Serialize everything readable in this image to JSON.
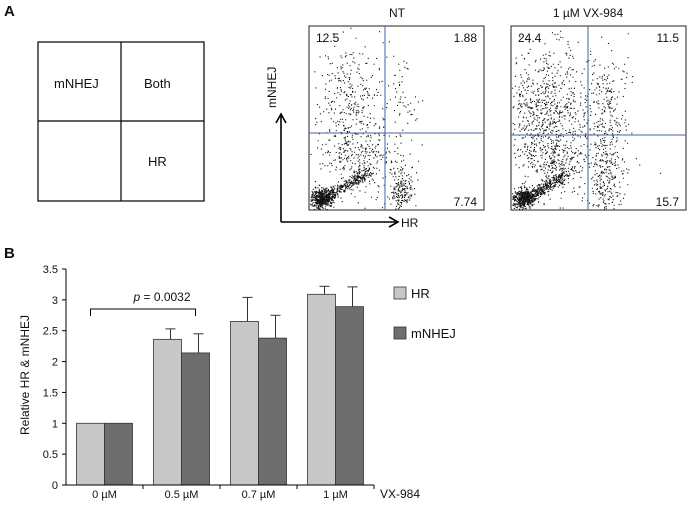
{
  "panels": {
    "a": "A",
    "b": "B"
  },
  "quadrant_key": {
    "top_left": "mNHEJ",
    "top_right": "Both",
    "bottom_left": "",
    "bottom_right": "HR"
  },
  "flow_axes": {
    "y": "mNHEJ",
    "x": "HR"
  },
  "flow_plots": [
    {
      "title": "NT",
      "top_left": "12.5",
      "top_right": "1.88",
      "bottom_right": "7.74"
    },
    {
      "title": "1 µM VX-984",
      "top_left": "24.4",
      "top_right": "11.5",
      "bottom_right": "15.7"
    }
  ],
  "chart_data": {
    "type": "bar",
    "ylabel": "Relative HR & mNHEJ",
    "xlabel": "VX-984",
    "ylim": [
      0,
      3.5
    ],
    "yticks": [
      "0",
      "0.5",
      "1",
      "1.5",
      "2",
      "2.5",
      "3",
      "3.5"
    ],
    "categories": [
      "0 µM",
      "0.5 µM",
      "0.7 µM",
      "1 µM"
    ],
    "series": [
      {
        "name": "HR",
        "color": "#c8c8c8",
        "values": [
          1.0,
          2.36,
          2.65,
          3.09
        ],
        "errors": [
          0,
          0.17,
          0.39,
          0.13
        ]
      },
      {
        "name": "mNHEJ",
        "color": "#6e6e6e",
        "values": [
          1.0,
          2.14,
          2.38,
          2.89
        ],
        "errors": [
          0,
          0.31,
          0.37,
          0.32
        ]
      }
    ],
    "legend_position": "right",
    "annotation": {
      "p_label": "p",
      "p_value": " = 0.0032"
    }
  }
}
